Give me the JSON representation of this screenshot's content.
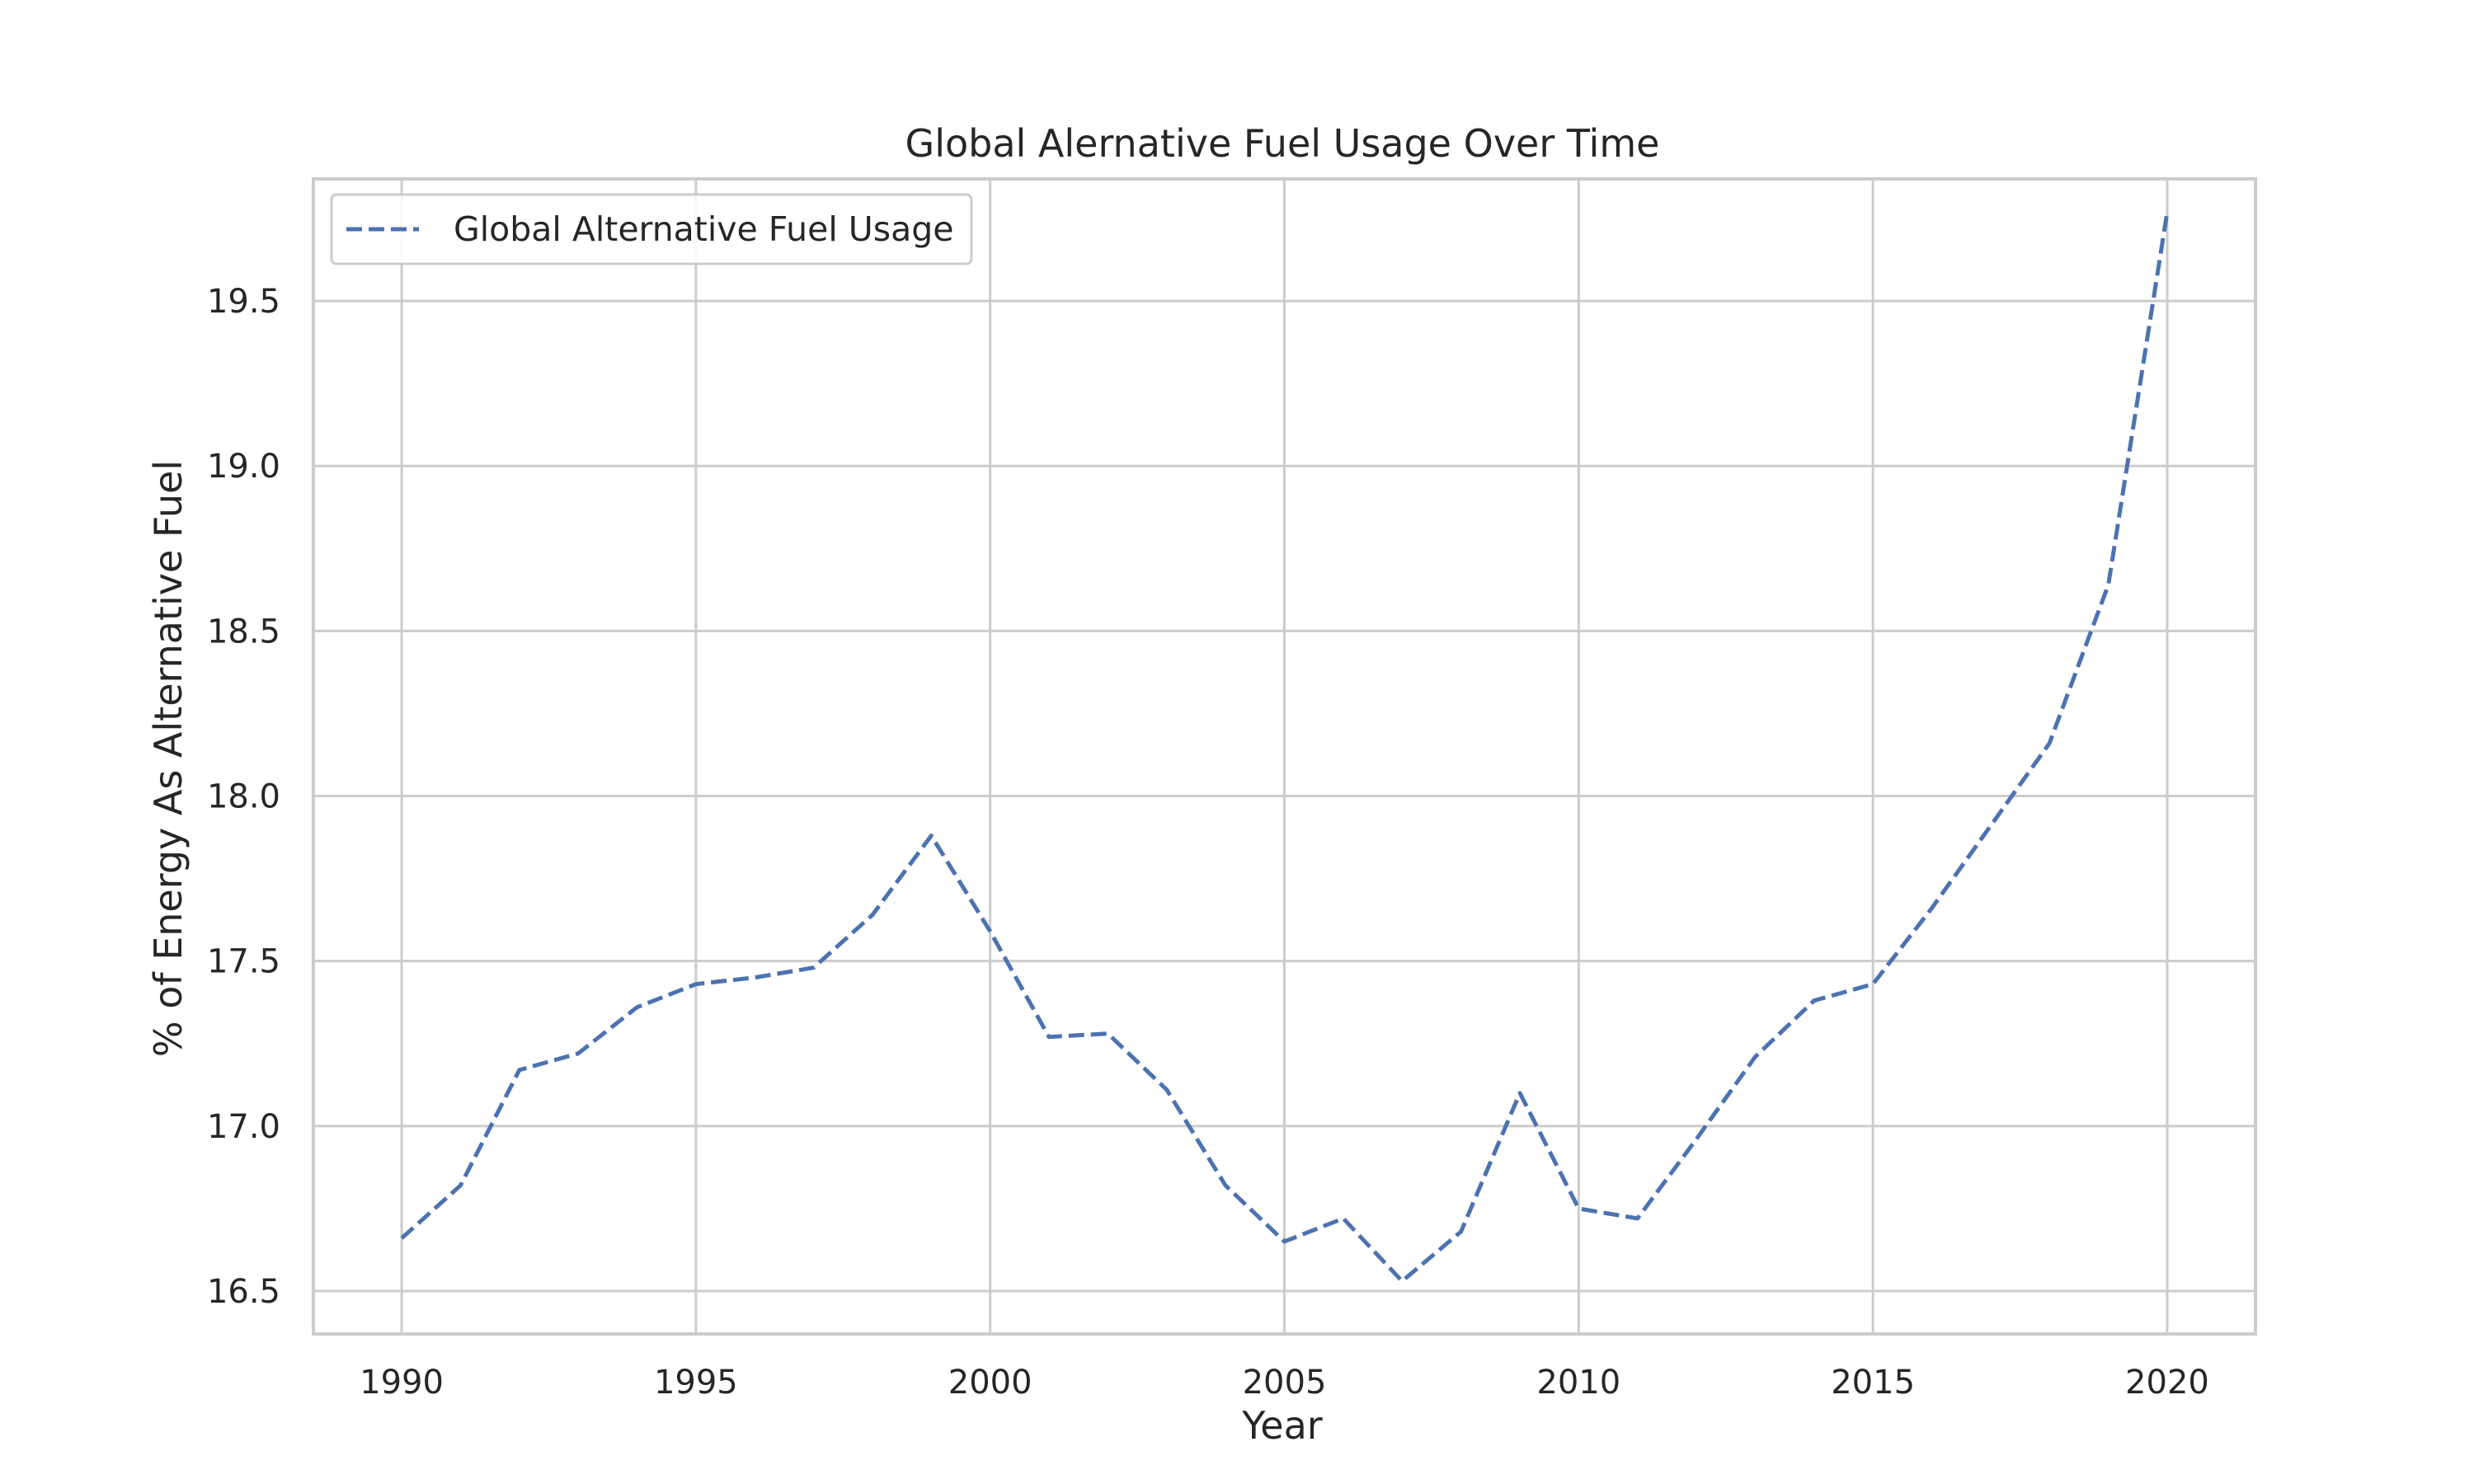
{
  "chart_data": {
    "type": "line",
    "title": "Global Alernative Fuel Usage Over Time",
    "xlabel": "Year",
    "ylabel": "% of Energy As Alternative Fuel",
    "xlim": [
      1988.5,
      2021.5
    ],
    "ylim": [
      16.37,
      19.87
    ],
    "x_ticks": [
      1990,
      1995,
      2000,
      2005,
      2010,
      2015,
      2020
    ],
    "y_ticks": [
      16.5,
      17.0,
      17.5,
      18.0,
      18.5,
      19.0,
      19.5
    ],
    "x_tick_labels": [
      "1990",
      "1995",
      "2000",
      "2005",
      "2010",
      "2015",
      "2020"
    ],
    "y_tick_labels": [
      "16.5",
      "17.0",
      "17.5",
      "18.0",
      "18.5",
      "19.0",
      "19.5"
    ],
    "grid": true,
    "legend_position": "upper-left",
    "colors": {
      "series": "#4c72b0",
      "grid": "#cccccc",
      "frame": "#cccccc"
    },
    "series": [
      {
        "name": "Global Alternative Fuel Usage",
        "line_style": "dashed",
        "x": [
          1990,
          1991,
          1992,
          1993,
          1994,
          1995,
          1996,
          1997,
          1998,
          1999,
          2000,
          2001,
          2002,
          2003,
          2004,
          2005,
          2006,
          2007,
          2008,
          2009,
          2010,
          2011,
          2012,
          2013,
          2014,
          2015,
          2016,
          2017,
          2018,
          2019,
          2020
        ],
        "y": [
          16.66,
          16.82,
          17.17,
          17.22,
          17.36,
          17.43,
          17.45,
          17.48,
          17.64,
          17.88,
          17.59,
          17.27,
          17.28,
          17.11,
          16.82,
          16.65,
          16.72,
          16.53,
          16.68,
          17.1,
          16.75,
          16.72,
          16.96,
          17.21,
          17.38,
          17.43,
          17.66,
          17.91,
          18.16,
          18.64,
          19.77
        ]
      }
    ]
  }
}
